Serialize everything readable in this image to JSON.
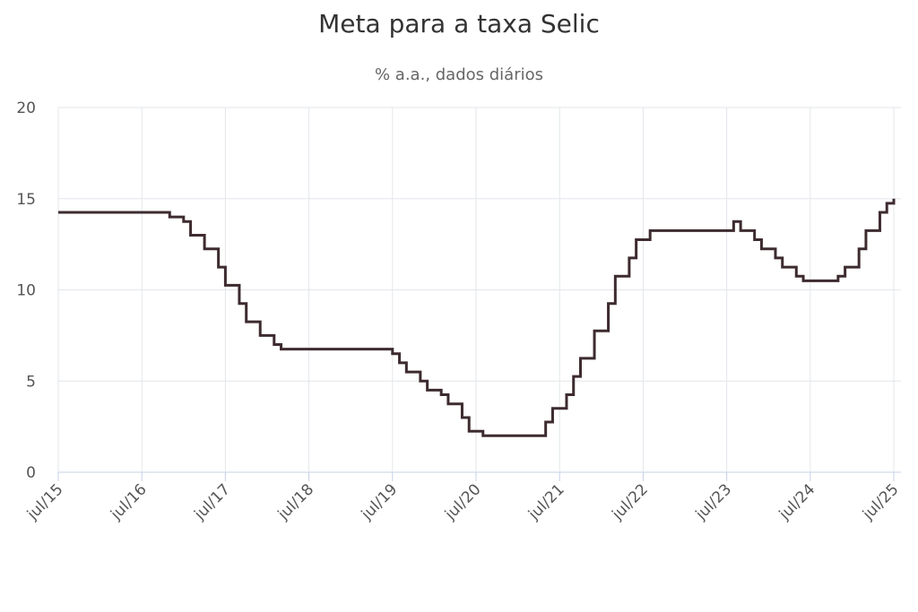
{
  "chart_data": {
    "type": "line",
    "title": "Meta para a taxa Selic",
    "subtitle": "% a.a., dados diários",
    "xlabel": "",
    "ylabel": "",
    "x_tick_labels": [
      "jul/15",
      "jul/16",
      "jul/17",
      "jul/18",
      "jul/19",
      "jul/20",
      "jul/21",
      "jul/22",
      "jul/23",
      "jul/24",
      "jul/25"
    ],
    "y_ticks": [
      0,
      5,
      10,
      15,
      20
    ],
    "ylim": [
      0,
      20
    ],
    "xlim": [
      "2015-07",
      "2025-07"
    ],
    "grid": true,
    "line_color": "#3d2b2f",
    "series": [
      {
        "x": [
          "2015-07",
          "2016-10",
          "2016-11",
          "2017-01",
          "2017-02",
          "2017-04",
          "2017-06",
          "2017-07",
          "2017-09",
          "2017-10",
          "2017-12",
          "2018-02",
          "2018-03",
          "2019-07",
          "2019-08",
          "2019-09",
          "2019-11",
          "2019-12",
          "2020-02",
          "2020-03",
          "2020-05",
          "2020-06",
          "2020-08",
          "2021-03",
          "2021-05",
          "2021-06",
          "2021-08",
          "2021-09",
          "2021-10",
          "2021-12",
          "2022-02",
          "2022-03",
          "2022-05",
          "2022-06",
          "2022-08",
          "2023-08",
          "2023-09",
          "2023-11",
          "2023-12",
          "2024-02",
          "2024-03",
          "2024-05",
          "2024-06",
          "2024-09",
          "2024-11",
          "2024-12",
          "2025-02",
          "2025-03",
          "2025-05",
          "2025-06",
          "2025-07"
        ],
        "values": [
          14.25,
          14.25,
          14.0,
          13.75,
          13.0,
          12.25,
          11.25,
          10.25,
          9.25,
          8.25,
          7.5,
          7.0,
          6.75,
          6.5,
          6.0,
          5.5,
          5.0,
          4.5,
          4.25,
          3.75,
          3.0,
          2.25,
          2.0,
          2.0,
          2.75,
          3.5,
          4.25,
          5.25,
          6.25,
          7.75,
          9.25,
          10.75,
          11.75,
          12.75,
          13.25,
          13.75,
          13.25,
          12.75,
          12.25,
          11.75,
          11.25,
          10.75,
          10.5,
          10.5,
          10.75,
          11.25,
          12.25,
          13.25,
          14.25,
          14.75,
          15.0
        ]
      }
    ]
  }
}
